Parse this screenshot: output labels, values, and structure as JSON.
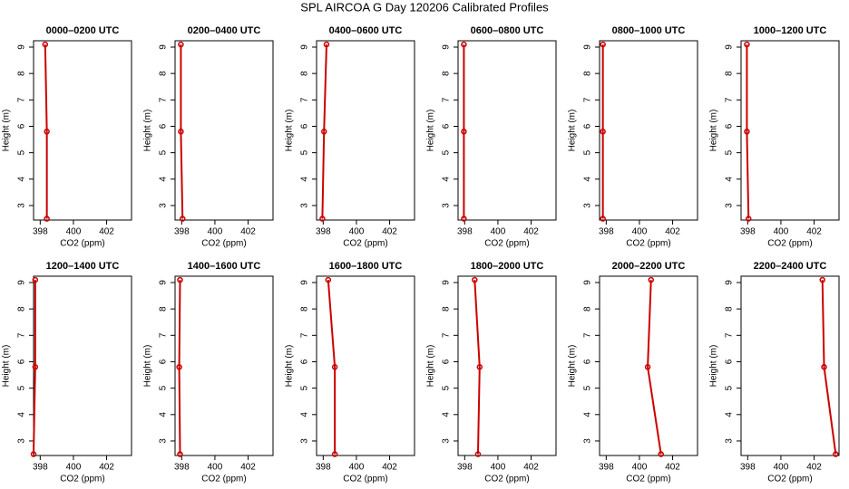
{
  "title": "SPL AIRCOA G  Day 120206  Calibrated Profiles",
  "chart_data": [
    {
      "type": "line",
      "title": "0000–0200 UTC",
      "xlabel": "CO2 (ppm)",
      "ylabel": "Height (m)",
      "color": "#cc0000",
      "x": [
        398.3,
        398.4,
        398.4
      ],
      "values": [
        9.1,
        5.8,
        2.5
      ],
      "xlim": [
        397.6,
        403.5
      ],
      "ylim": [
        2.45,
        9.24
      ],
      "xticks": [
        398,
        400,
        402
      ],
      "yticks": [
        3,
        4,
        5,
        6,
        7,
        8,
        9
      ]
    },
    {
      "type": "line",
      "title": "0200–0400 UTC",
      "xlabel": "CO2 (ppm)",
      "ylabel": "Height (m)",
      "color": "#cc0000",
      "x": [
        397.95,
        397.95,
        398.05
      ],
      "values": [
        9.1,
        5.8,
        2.5
      ],
      "xlim": [
        397.6,
        403.5
      ],
      "ylim": [
        2.45,
        9.24
      ],
      "xticks": [
        398,
        400,
        402
      ],
      "yticks": [
        3,
        4,
        5,
        6,
        7,
        8,
        9
      ]
    },
    {
      "type": "line",
      "title": "0400–0600 UTC",
      "xlabel": "CO2 (ppm)",
      "ylabel": "Height (m)",
      "color": "#cc0000",
      "x": [
        398.2,
        398.05,
        397.95
      ],
      "values": [
        9.1,
        5.8,
        2.5
      ],
      "xlim": [
        397.6,
        403.5
      ],
      "ylim": [
        2.45,
        9.24
      ],
      "xticks": [
        398,
        400,
        402
      ],
      "yticks": [
        3,
        4,
        5,
        6,
        7,
        8,
        9
      ]
    },
    {
      "type": "line",
      "title": "0600–0800 UTC",
      "xlabel": "CO2 (ppm)",
      "ylabel": "Height (m)",
      "color": "#cc0000",
      "x": [
        397.95,
        397.95,
        397.95
      ],
      "values": [
        9.1,
        5.8,
        2.5
      ],
      "xlim": [
        397.6,
        403.5
      ],
      "ylim": [
        2.45,
        9.24
      ],
      "xticks": [
        398,
        400,
        402
      ],
      "yticks": [
        3,
        4,
        5,
        6,
        7,
        8,
        9
      ]
    },
    {
      "type": "line",
      "title": "0800–1000 UTC",
      "xlabel": "CO2 (ppm)",
      "ylabel": "Height (m)",
      "color": "#cc0000",
      "x": [
        397.8,
        397.8,
        397.8
      ],
      "values": [
        9.1,
        5.8,
        2.5
      ],
      "xlim": [
        397.6,
        403.5
      ],
      "ylim": [
        2.45,
        9.24
      ],
      "xticks": [
        398,
        400,
        402
      ],
      "yticks": [
        3,
        4,
        5,
        6,
        7,
        8,
        9
      ]
    },
    {
      "type": "line",
      "title": "1000–1200 UTC",
      "xlabel": "CO2 (ppm)",
      "ylabel": "Height (m)",
      "color": "#cc0000",
      "x": [
        397.95,
        397.95,
        398.05
      ],
      "values": [
        9.1,
        5.8,
        2.5
      ],
      "xlim": [
        397.6,
        403.5
      ],
      "ylim": [
        2.45,
        9.24
      ],
      "xticks": [
        398,
        400,
        402
      ],
      "yticks": [
        3,
        4,
        5,
        6,
        7,
        8,
        9
      ]
    },
    {
      "type": "line",
      "title": "1200–1400 UTC",
      "xlabel": "CO2 (ppm)",
      "ylabel": "Height (m)",
      "color": "#cc0000",
      "x": [
        397.7,
        397.7,
        397.6
      ],
      "values": [
        9.1,
        5.8,
        2.5
      ],
      "xlim": [
        397.6,
        403.5
      ],
      "ylim": [
        2.45,
        9.24
      ],
      "xticks": [
        398,
        400,
        402
      ],
      "yticks": [
        3,
        4,
        5,
        6,
        7,
        8,
        9
      ]
    },
    {
      "type": "line",
      "title": "1400–1600 UTC",
      "xlabel": "CO2 (ppm)",
      "ylabel": "Height (m)",
      "color": "#cc0000",
      "x": [
        397.9,
        397.85,
        397.9
      ],
      "values": [
        9.1,
        5.8,
        2.5
      ],
      "xlim": [
        397.6,
        403.5
      ],
      "ylim": [
        2.45,
        9.24
      ],
      "xticks": [
        398,
        400,
        402
      ],
      "yticks": [
        3,
        4,
        5,
        6,
        7,
        8,
        9
      ]
    },
    {
      "type": "line",
      "title": "1600–1800 UTC",
      "xlabel": "CO2 (ppm)",
      "ylabel": "Height (m)",
      "color": "#cc0000",
      "x": [
        398.3,
        398.7,
        398.7
      ],
      "values": [
        9.1,
        5.8,
        2.5
      ],
      "xlim": [
        397.6,
        403.5
      ],
      "ylim": [
        2.45,
        9.24
      ],
      "xticks": [
        398,
        400,
        402
      ],
      "yticks": [
        3,
        4,
        5,
        6,
        7,
        8,
        9
      ]
    },
    {
      "type": "line",
      "title": "1800–2000 UTC",
      "xlabel": "CO2 (ppm)",
      "ylabel": "Height (m)",
      "color": "#cc0000",
      "x": [
        398.6,
        398.9,
        398.8
      ],
      "values": [
        9.1,
        5.8,
        2.5
      ],
      "xlim": [
        397.6,
        403.5
      ],
      "ylim": [
        2.45,
        9.24
      ],
      "xticks": [
        398,
        400,
        402
      ],
      "yticks": [
        3,
        4,
        5,
        6,
        7,
        8,
        9
      ]
    },
    {
      "type": "line",
      "title": "2000–2200 UTC",
      "xlabel": "CO2 (ppm)",
      "ylabel": "Height (m)",
      "color": "#cc0000",
      "x": [
        400.7,
        400.5,
        401.3
      ],
      "values": [
        9.1,
        5.8,
        2.5
      ],
      "xlim": [
        397.6,
        403.5
      ],
      "ylim": [
        2.45,
        9.24
      ],
      "xticks": [
        398,
        400,
        402
      ],
      "yticks": [
        3,
        4,
        5,
        6,
        7,
        8,
        9
      ]
    },
    {
      "type": "line",
      "title": "2200–2400 UTC",
      "xlabel": "CO2 (ppm)",
      "ylabel": "Height (m)",
      "color": "#cc0000",
      "x": [
        402.5,
        402.6,
        403.3
      ],
      "values": [
        9.1,
        5.8,
        2.5
      ],
      "xlim": [
        397.6,
        403.5
      ],
      "ylim": [
        2.45,
        9.24
      ],
      "xticks": [
        398,
        400,
        402
      ],
      "yticks": [
        3,
        4,
        5,
        6,
        7,
        8,
        9
      ]
    }
  ]
}
